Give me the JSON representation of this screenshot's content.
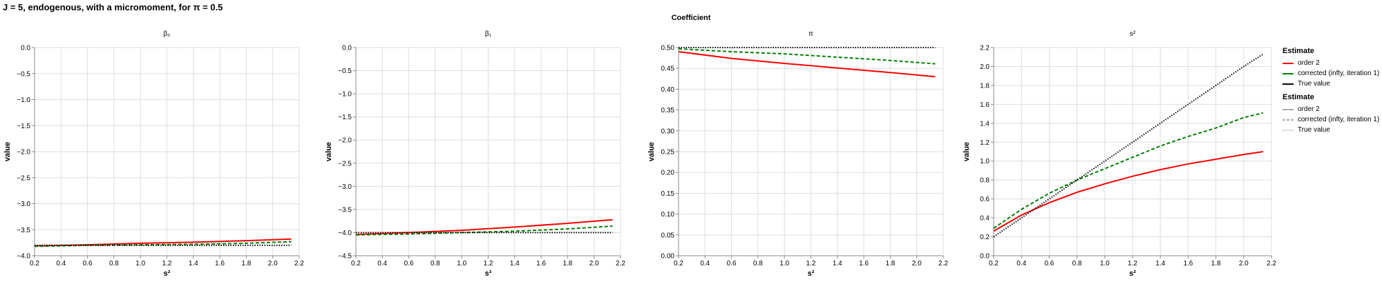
{
  "title": "J = 5, endogenous, with a micromoment,  for π = 0.5",
  "facet_header": "Coefficient",
  "legend": {
    "color_title": "Estimate",
    "color_entries": [
      {
        "label": "order 2",
        "color": "#ff0000"
      },
      {
        "label": "corrected (infty, iteration 1)",
        "color": "#008000"
      },
      {
        "label": "True value",
        "color": "#000000"
      }
    ],
    "dash_title": "Estimate",
    "dash_entries": [
      {
        "label": "order 2",
        "dash": "solid"
      },
      {
        "label": "corrected (infty, iteration 1)",
        "dash": "dashed"
      },
      {
        "label": "True value",
        "dash": "dotted"
      }
    ]
  },
  "chart_data": [
    {
      "type": "line",
      "title": "β₀",
      "xlabel": "s²",
      "ylabel": "value",
      "xlim": [
        0.2,
        2.2
      ],
      "ylim": [
        -4.0,
        0.0
      ],
      "xticks": [
        "0.2",
        "0.4",
        "0.6",
        "0.8",
        "1.0",
        "1.2",
        "1.4",
        "1.6",
        "1.8",
        "2.0",
        "2.2"
      ],
      "yticks": [
        "0.0",
        "−0.5",
        "−1.0",
        "−1.5",
        "−2.0",
        "−2.5",
        "−3.0",
        "−3.5",
        "−4.0"
      ],
      "x": [
        0.2,
        0.6,
        1.0,
        1.4,
        1.8,
        2.14
      ],
      "series": [
        {
          "name": "order 2",
          "color": "#ff0000",
          "dash": "solid",
          "values": [
            -3.81,
            -3.79,
            -3.76,
            -3.74,
            -3.71,
            -3.68
          ]
        },
        {
          "name": "corrected (infty, iteration 1)",
          "color": "#008000",
          "dash": "dashed",
          "values": [
            -3.82,
            -3.8,
            -3.79,
            -3.78,
            -3.76,
            -3.73
          ]
        },
        {
          "name": "True value",
          "color": "#000000",
          "dash": "dotted",
          "values": [
            -3.8,
            -3.8,
            -3.8,
            -3.8,
            -3.8,
            -3.8
          ]
        }
      ]
    },
    {
      "type": "line",
      "title": "β₁",
      "xlabel": "s²",
      "ylabel": "value",
      "xlim": [
        0.2,
        2.2
      ],
      "ylim": [
        -4.5,
        0.0
      ],
      "xticks": [
        "0.2",
        "0.4",
        "0.6",
        "0.8",
        "1.0",
        "1.2",
        "1.4",
        "1.6",
        "1.8",
        "2.0",
        "2.2"
      ],
      "yticks": [
        "0.0",
        "−0.5",
        "−1.0",
        "−1.5",
        "−2.0",
        "−2.5",
        "−3.0",
        "−3.5",
        "−4.0",
        "−4.5"
      ],
      "x": [
        0.2,
        0.6,
        1.0,
        1.4,
        1.8,
        2.14
      ],
      "series": [
        {
          "name": "order 2",
          "color": "#ff0000",
          "dash": "solid",
          "values": [
            -4.04,
            -4.0,
            -3.95,
            -3.88,
            -3.8,
            -3.72
          ]
        },
        {
          "name": "corrected (infty, iteration 1)",
          "color": "#008000",
          "dash": "dashed",
          "values": [
            -4.05,
            -4.03,
            -4.0,
            -3.97,
            -3.92,
            -3.86
          ]
        },
        {
          "name": "True value",
          "color": "#000000",
          "dash": "dotted",
          "values": [
            -4.0,
            -4.0,
            -4.0,
            -4.0,
            -4.0,
            -4.0
          ]
        }
      ]
    },
    {
      "type": "line",
      "title": "π",
      "xlabel": "s²",
      "ylabel": "value",
      "xlim": [
        0.2,
        2.2
      ],
      "ylim": [
        0.0,
        0.5
      ],
      "xticks": [
        "0.2",
        "0.4",
        "0.6",
        "0.8",
        "1.0",
        "1.2",
        "1.4",
        "1.6",
        "1.8",
        "2.0",
        "2.2"
      ],
      "yticks": [
        "0.50",
        "0.45",
        "0.40",
        "0.35",
        "0.30",
        "0.25",
        "0.20",
        "0.15",
        "0.10",
        "0.05",
        "0.00"
      ],
      "x": [
        0.2,
        0.6,
        1.0,
        1.4,
        1.8,
        2.14
      ],
      "series": [
        {
          "name": "order 2",
          "color": "#ff0000",
          "dash": "solid",
          "values": [
            0.49,
            0.474,
            0.462,
            0.451,
            0.44,
            0.43
          ]
        },
        {
          "name": "corrected (infty, iteration 1)",
          "color": "#008000",
          "dash": "dashed",
          "values": [
            0.497,
            0.49,
            0.485,
            0.477,
            0.469,
            0.461
          ]
        },
        {
          "name": "True value",
          "color": "#000000",
          "dash": "dotted",
          "values": [
            0.5,
            0.5,
            0.5,
            0.5,
            0.5,
            0.5
          ]
        }
      ]
    },
    {
      "type": "line",
      "title": "s²",
      "xlabel": "s²",
      "ylabel": "value",
      "xlim": [
        0.2,
        2.2
      ],
      "ylim": [
        0.0,
        2.2
      ],
      "xticks": [
        "0.2",
        "0.4",
        "0.6",
        "0.8",
        "1.0",
        "1.2",
        "1.4",
        "1.6",
        "1.8",
        "2.0",
        "2.2"
      ],
      "yticks": [
        "2.2",
        "2.0",
        "1.8",
        "1.6",
        "1.4",
        "1.2",
        "1.0",
        "0.8",
        "0.6",
        "0.4",
        "0.2",
        "0.0"
      ],
      "x": [
        0.2,
        0.4,
        0.6,
        0.8,
        1.0,
        1.2,
        1.4,
        1.6,
        1.8,
        2.0,
        2.14
      ],
      "series": [
        {
          "name": "order 2",
          "color": "#ff0000",
          "dash": "solid",
          "values": [
            0.26,
            0.43,
            0.56,
            0.67,
            0.76,
            0.84,
            0.91,
            0.97,
            1.02,
            1.07,
            1.1
          ]
        },
        {
          "name": "corrected (infty, iteration 1)",
          "color": "#008000",
          "dash": "dashed",
          "values": [
            0.29,
            0.49,
            0.66,
            0.8,
            0.92,
            1.04,
            1.16,
            1.26,
            1.35,
            1.46,
            1.51
          ]
        },
        {
          "name": "True value",
          "color": "#000000",
          "dash": "dotted",
          "values": [
            0.2,
            0.4,
            0.6,
            0.8,
            1.0,
            1.2,
            1.4,
            1.6,
            1.8,
            2.0,
            2.13
          ]
        }
      ]
    }
  ]
}
